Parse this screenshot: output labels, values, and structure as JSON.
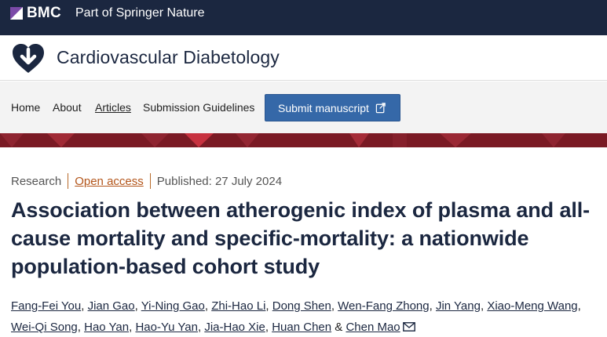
{
  "topbar": {
    "brand": "BMC",
    "tagline": "Part of Springer Nature"
  },
  "journal": {
    "title": "Cardiovascular Diabetology",
    "icon": "heart-logo-icon"
  },
  "nav": {
    "items": [
      "Home",
      "About",
      "Articles",
      "Submission Guidelines"
    ],
    "active": "Articles",
    "submit_label": "Submit manuscript",
    "submit_icon": "external-link-icon"
  },
  "article": {
    "type": "Research",
    "access": "Open access",
    "published": "Published: 27 July 2024",
    "title": "Association between atherogenic index of plasma and all-cause mortality and specific-mortality: a nationwide population-based cohort study",
    "authors": [
      "Fang-Fei You",
      "Jian Gao",
      "Yi-Ning Gao",
      "Zhi-Hao Li",
      "Dong Shen",
      "Wen-Fang Zhong",
      "Jin Yang",
      "Xiao-Meng Wang",
      "Wei-Qi Song",
      "Hao Yan",
      "Hao-Yu Yan",
      "Jia-Hao Xie",
      "Huan Chen",
      "Chen Mao"
    ],
    "author_sep": ",",
    "author_last_sep": "&",
    "corresponding_icon": "mail-icon"
  },
  "colors": {
    "topbar": "#1b2740",
    "banner": "#7a1a24",
    "submit": "#3568a8",
    "accent": "#b3551a"
  }
}
